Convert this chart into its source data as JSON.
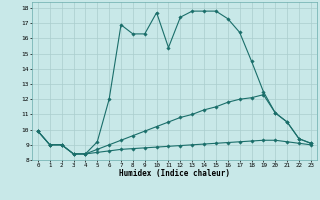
{
  "xlabel": "Humidex (Indice chaleur)",
  "xlim": [
    -0.5,
    23.5
  ],
  "ylim": [
    8,
    18.4
  ],
  "yticks": [
    8,
    9,
    10,
    11,
    12,
    13,
    14,
    15,
    16,
    17,
    18
  ],
  "xticks": [
    0,
    1,
    2,
    3,
    4,
    5,
    6,
    7,
    8,
    9,
    10,
    11,
    12,
    13,
    14,
    15,
    16,
    17,
    18,
    19,
    20,
    21,
    22,
    23
  ],
  "bg_color": "#c8e8e8",
  "line_color": "#1a6e6a",
  "grid_color": "#b0d8d4",
  "lines": [
    {
      "x": [
        0,
        1,
        2,
        3,
        4,
        5,
        6,
        7,
        8,
        9,
        10,
        11,
        12,
        13,
        14,
        15,
        16,
        17,
        18,
        19,
        20,
        21,
        22,
        23
      ],
      "y": [
        9.9,
        9.0,
        9.0,
        8.4,
        8.4,
        9.2,
        12.0,
        16.9,
        16.3,
        16.3,
        17.7,
        15.4,
        17.4,
        17.8,
        17.8,
        17.8,
        17.3,
        16.4,
        14.5,
        12.5,
        11.1,
        10.5,
        9.4,
        9.1
      ]
    },
    {
      "x": [
        0,
        1,
        2,
        3,
        4,
        5,
        6,
        7,
        8,
        9,
        10,
        11,
        12,
        13,
        14,
        15,
        16,
        17,
        18,
        19,
        20,
        21,
        22,
        23
      ],
      "y": [
        9.9,
        9.0,
        9.0,
        8.4,
        8.4,
        8.7,
        9.0,
        9.3,
        9.6,
        9.9,
        10.2,
        10.5,
        10.8,
        11.0,
        11.3,
        11.5,
        11.8,
        12.0,
        12.1,
        12.3,
        11.1,
        10.5,
        9.4,
        9.1
      ]
    },
    {
      "x": [
        0,
        1,
        2,
        3,
        4,
        5,
        6,
        7,
        8,
        9,
        10,
        11,
        12,
        13,
        14,
        15,
        16,
        17,
        18,
        19,
        20,
        21,
        22,
        23
      ],
      "y": [
        9.9,
        9.0,
        9.0,
        8.4,
        8.4,
        8.5,
        8.6,
        8.7,
        8.75,
        8.8,
        8.85,
        8.9,
        8.95,
        9.0,
        9.05,
        9.1,
        9.15,
        9.2,
        9.25,
        9.3,
        9.3,
        9.2,
        9.1,
        9.0
      ]
    }
  ]
}
